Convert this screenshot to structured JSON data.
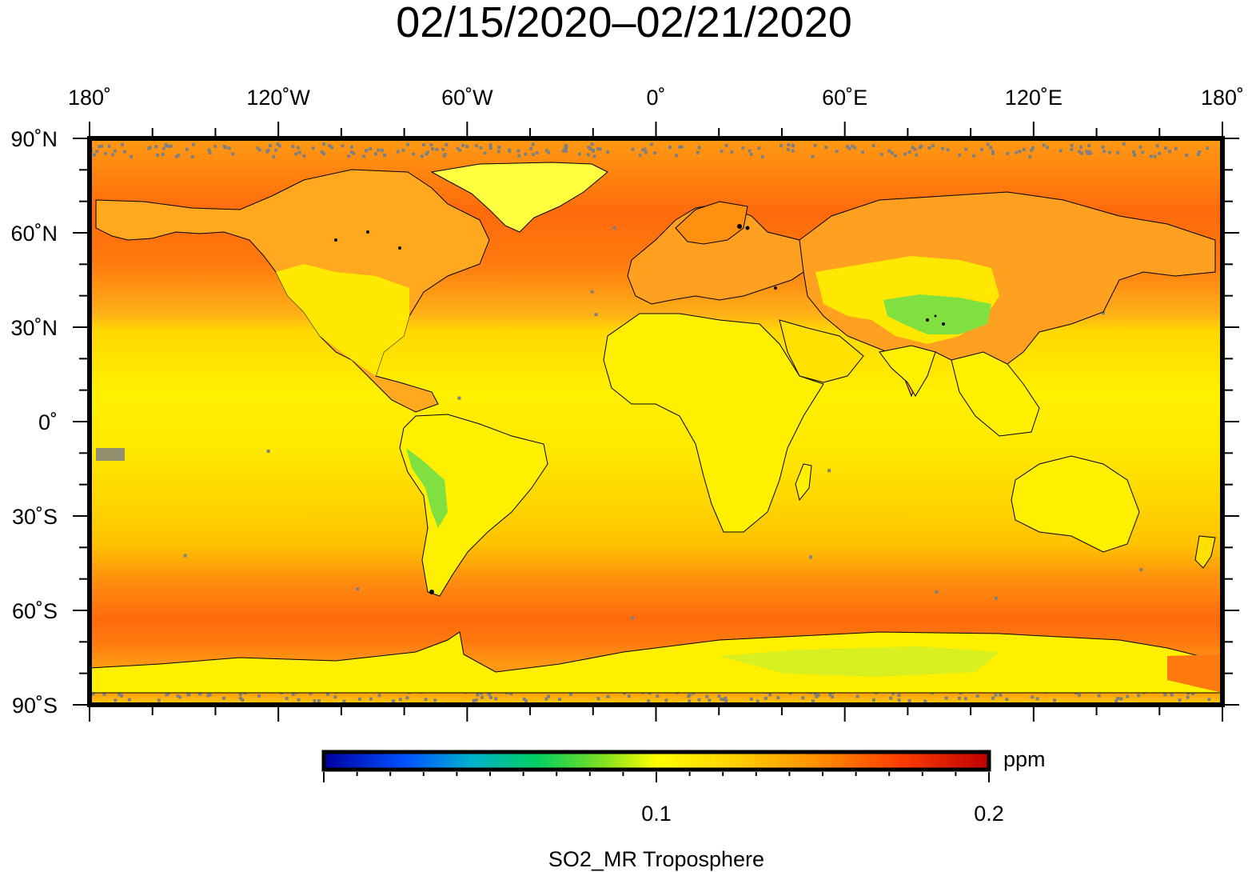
{
  "title": "02/15/2020–02/21/2020",
  "map": {
    "lon_labels": [
      "180˚",
      "120˚W",
      "60˚W",
      "0˚",
      "60˚E",
      "120˚E",
      "180˚"
    ],
    "lat_labels": [
      "90˚N",
      "60˚N",
      "30˚N",
      "0˚",
      "30˚S",
      "60˚S",
      "90˚S"
    ],
    "lon_range": [
      -180,
      180
    ],
    "lat_range": [
      -90,
      90
    ],
    "missing_color": "#808080",
    "land_outline_color": "#000000"
  },
  "colorbar": {
    "unit": "ppm",
    "tick_labels": [
      "0.1",
      "0.2"
    ],
    "range": [
      0,
      0.2
    ],
    "colors": [
      "#0000a0",
      "#0060ff",
      "#00d080",
      "#60e040",
      "#ffff00",
      "#ffa000",
      "#ff4000",
      "#c00000"
    ],
    "caption": "SO2_MR Troposphere"
  }
}
